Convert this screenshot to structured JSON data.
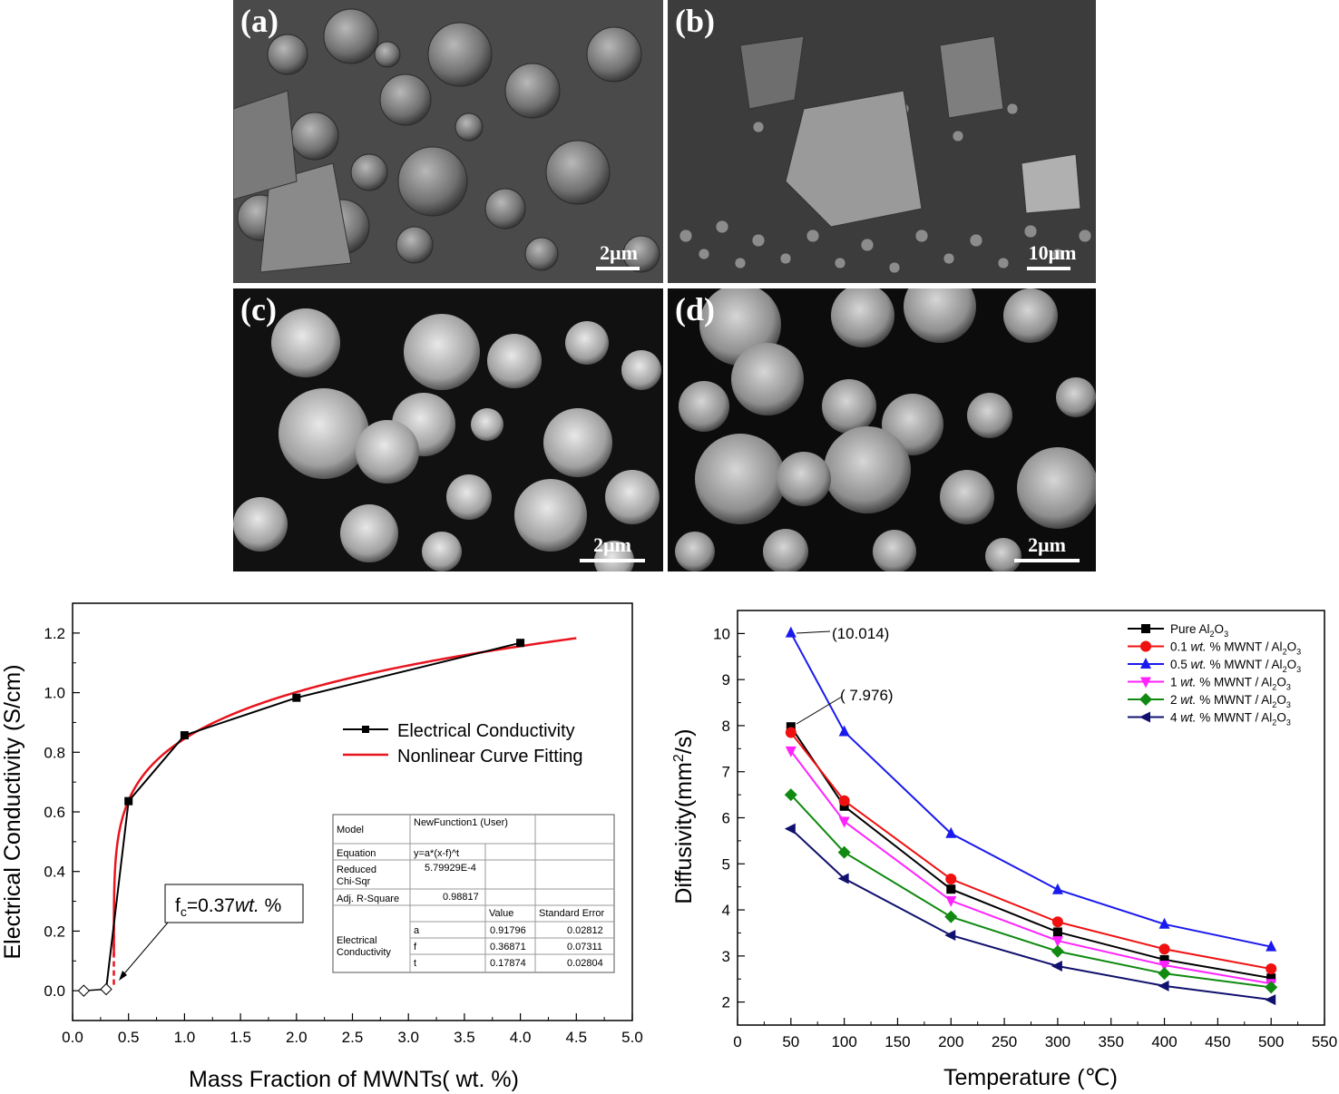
{
  "sem_panels": [
    {
      "label": "(a)",
      "scale": "2μm"
    },
    {
      "label": "(b)",
      "scale": "10μm"
    },
    {
      "label": "(c)",
      "scale": "2μm"
    },
    {
      "label": "(d)",
      "scale": "2μm"
    }
  ],
  "chart_data": [
    {
      "type": "line",
      "xlabel": "Mass Fraction of MWNTs( wt. %)",
      "ylabel": "Electrical Conductivity (S/cm)",
      "xlim": [
        0.0,
        5.0
      ],
      "ylim": [
        -0.1,
        1.3
      ],
      "xticks": [
        "0.0",
        "0.5",
        "1.0",
        "1.5",
        "2.0",
        "2.5",
        "3.0",
        "3.5",
        "4.0",
        "4.5",
        "5.0"
      ],
      "yticks": [
        "0.0",
        "0.2",
        "0.4",
        "0.6",
        "0.8",
        "1.0",
        "1.2"
      ],
      "series": [
        {
          "name": "Electrical Conductivity",
          "color": "#000000",
          "marker": "square",
          "x": [
            0.5,
            1.0,
            2.0,
            4.0
          ],
          "y": [
            0.636,
            0.857,
            0.983,
            1.167
          ]
        },
        {
          "name": "Nonlinear Curve Fitting",
          "color": "#e8141e",
          "marker": "none",
          "fit": {
            "a": 0.91796,
            "f": 0.36871,
            "t": 0.17874
          },
          "x_range": [
            0.37,
            4.5
          ]
        }
      ],
      "open_points": {
        "x": [
          0.1,
          0.3
        ],
        "y": [
          0.0,
          0.005
        ]
      },
      "annotation": "fc=0.37wt. %",
      "fit_table": {
        "model_label": "Model",
        "model_value": "NewFunction1 (User)",
        "equation_label": "Equation",
        "equation_value": "y=a*(x-f)^t",
        "chisqr_label": "Reduced Chi-Sqr",
        "chisqr_value": "5.79929E-4",
        "rsq_label": "Adj. R-Square",
        "rsq_value": "0.98817",
        "value_header": "Value",
        "error_header": "Standard Error",
        "param_group": "Electrical Conductivity",
        "params": [
          {
            "name": "a",
            "value": "0.91796",
            "error": "0.02812"
          },
          {
            "name": "f",
            "value": "0.36871",
            "error": "0.07311"
          },
          {
            "name": "t",
            "value": "0.17874",
            "error": "0.02804"
          }
        ]
      }
    },
    {
      "type": "line",
      "xlabel": "Temperature (℃)",
      "ylabel": "Diffusivity(mm²/s)",
      "xlim": [
        0,
        550
      ],
      "ylim": [
        1.5,
        10.5
      ],
      "xticks": [
        "0",
        "50",
        "100",
        "150",
        "200",
        "250",
        "300",
        "350",
        "400",
        "450",
        "500",
        "550"
      ],
      "yticks": [
        "2",
        "3",
        "4",
        "5",
        "6",
        "7",
        "8",
        "9",
        "10"
      ],
      "x": [
        50,
        100,
        200,
        300,
        400,
        500
      ],
      "series": [
        {
          "name": "Pure Al2O3",
          "color": "#000000",
          "marker": "square",
          "y": [
            7.976,
            6.25,
            4.45,
            3.52,
            2.92,
            2.52
          ]
        },
        {
          "name": "0.1 wt. % MWNT / Al2O3",
          "color": "#f01010",
          "marker": "circle",
          "y": [
            7.85,
            6.37,
            4.67,
            3.74,
            3.15,
            2.72
          ]
        },
        {
          "name": "0.5 wt. % MWNT / Al2O3",
          "color": "#1a1aee",
          "marker": "triangle-up",
          "y": [
            10.014,
            7.87,
            5.66,
            4.44,
            3.69,
            3.2
          ]
        },
        {
          "name": "1 wt. % MWNT / Al2O3",
          "color": "#ff22ff",
          "marker": "triangle-down",
          "y": [
            7.45,
            5.92,
            4.2,
            3.33,
            2.8,
            2.4
          ]
        },
        {
          "name": "2 wt. % MWNT / Al2O3",
          "color": "#108a10",
          "marker": "diamond",
          "y": [
            6.5,
            5.25,
            3.85,
            3.1,
            2.62,
            2.32
          ]
        },
        {
          "name": "4 wt. % MWNT / Al2O3",
          "color": "#10106e",
          "marker": "triangle-left",
          "y": [
            5.76,
            4.68,
            3.45,
            2.78,
            2.35,
            2.05
          ]
        }
      ],
      "annotations": [
        "(10.014)",
        "( 7.976)"
      ]
    }
  ]
}
